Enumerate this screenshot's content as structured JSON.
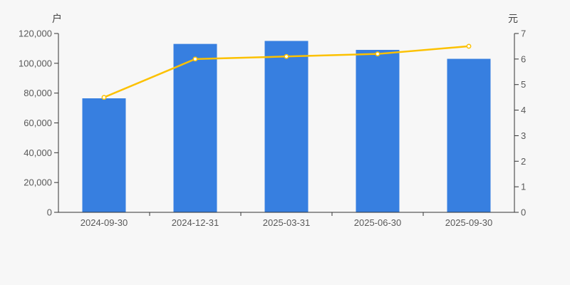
{
  "chart": {
    "background": "#f7f7f7",
    "axis_color": "#333333",
    "tick_text_color": "#595959",
    "unit_label_color": "#444444"
  },
  "chart_data": {
    "type": "bar",
    "title": "",
    "categories": [
      "2024-09-30",
      "2024-12-31",
      "2025-03-31",
      "2025-06-30",
      "2025-09-30"
    ],
    "series": [
      {
        "kind": "bar",
        "axis": "left",
        "color": "#377FE0",
        "values": [
          76500,
          113000,
          115000,
          109000,
          103000
        ]
      },
      {
        "kind": "line",
        "axis": "right",
        "color": "#FCC100",
        "marker_fill": "#FFFFFF",
        "values": [
          4.5,
          6.0,
          6.1,
          6.2,
          6.5
        ]
      }
    ],
    "left_axis": {
      "unit": "户",
      "min": 0,
      "max": 120000,
      "tick_step": 20000
    },
    "right_axis": {
      "unit": "元",
      "min": 0,
      "max": 7,
      "tick_step": 1
    },
    "grid": false,
    "legend": null
  }
}
